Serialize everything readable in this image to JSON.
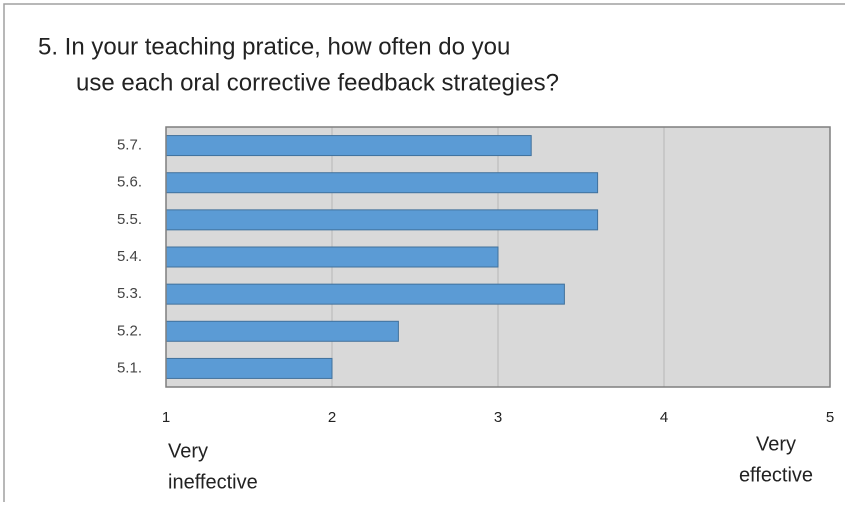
{
  "chart_data": {
    "type": "bar",
    "orientation": "horizontal",
    "title": [
      "5.  In your teaching pratice, how often do you",
      "use each oral corrective feedback strategies?"
    ],
    "categories": [
      "5.1.",
      "5.2.",
      "5.3.",
      "5.4.",
      "5.5.",
      "5.6.",
      "5.7."
    ],
    "values": [
      2.0,
      2.4,
      3.4,
      3.0,
      3.6,
      3.6,
      3.2
    ],
    "color": "#5b9bd5",
    "xlim": [
      1,
      5
    ],
    "xticks": [
      1,
      2,
      3,
      4,
      5
    ],
    "grid": true,
    "left_label": [
      "Very",
      "ineffective"
    ],
    "right_label": [
      "Very",
      "effective"
    ]
  }
}
